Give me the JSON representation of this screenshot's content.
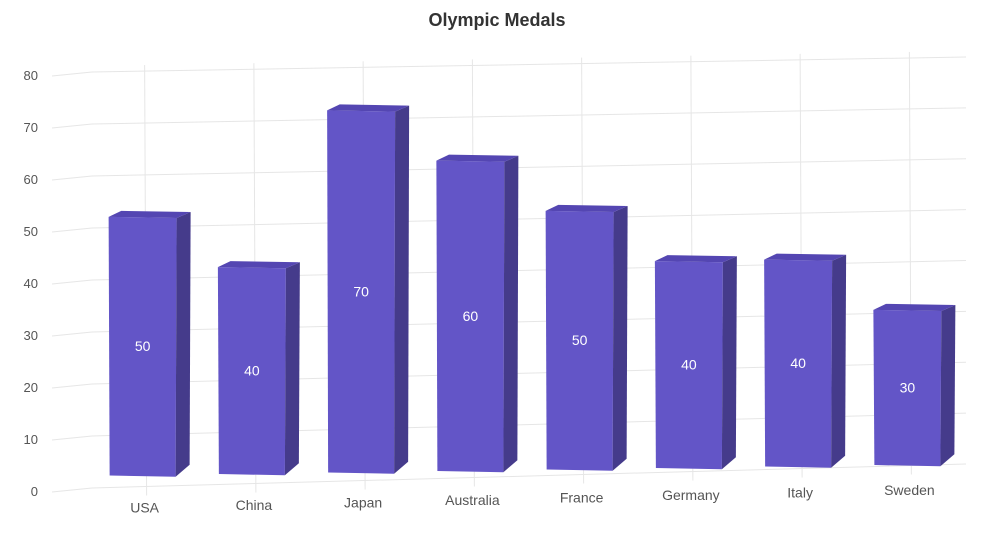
{
  "colors": {
    "bar_front": "#6355C7",
    "bar_side": "#453B8B",
    "bar_top": "#5446B2",
    "grid": "#e6e6e6",
    "axis_text": "#555555",
    "data_label": "#ffffff"
  },
  "chart_data": {
    "type": "bar",
    "style": "3d-column",
    "title": "Olympic Medals",
    "categories": [
      "USA",
      "China",
      "Japan",
      "Australia",
      "France",
      "Germany",
      "Italy",
      "Sweden"
    ],
    "values": [
      50,
      40,
      70,
      60,
      50,
      40,
      40,
      30
    ],
    "ylim": [
      0,
      80
    ],
    "y_ticks": [
      0,
      10,
      20,
      30,
      40,
      50,
      60,
      70,
      80
    ],
    "grid": true,
    "data_labels": true,
    "legend": "none"
  }
}
